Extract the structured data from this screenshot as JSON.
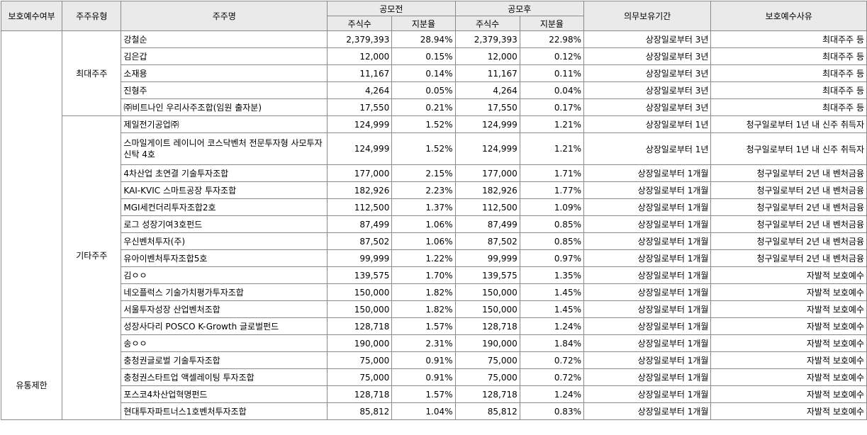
{
  "header": {
    "protect": "보호예수여부",
    "type": "주주유형",
    "name": "주주명",
    "pre": "공모전",
    "post": "공모후",
    "shares": "주식수",
    "ratio": "지분율",
    "period": "의무보유기간",
    "reason": "보호예수사유"
  },
  "protect_group": "유통제한",
  "groups": [
    "최대주주",
    "기타주주"
  ],
  "rows": [
    {
      "name": "강철순",
      "pre_shares": "2,379,393",
      "pre_ratio": "28.94%",
      "post_shares": "2,379,393",
      "post_ratio": "22.98%",
      "period": "상장일로부터 3년",
      "reason": "최대주주 등"
    },
    {
      "name": "김은갑",
      "pre_shares": "12,000",
      "pre_ratio": "0.15%",
      "post_shares": "12,000",
      "post_ratio": "0.12%",
      "period": "상장일로부터 3년",
      "reason": "최대주주 등"
    },
    {
      "name": "소재용",
      "pre_shares": "11,167",
      "pre_ratio": "0.14%",
      "post_shares": "11,167",
      "post_ratio": "0.11%",
      "period": "상장일로부터 3년",
      "reason": "최대주주 등"
    },
    {
      "name": "진형주",
      "pre_shares": "4,264",
      "pre_ratio": "0.05%",
      "post_shares": "4,264",
      "post_ratio": "0.04%",
      "period": "상장일로부터 3년",
      "reason": "최대주주 등"
    },
    {
      "name": "㈜비트나인 우리사주조합(임원 출자분)",
      "pre_shares": "17,550",
      "pre_ratio": "0.21%",
      "post_shares": "17,550",
      "post_ratio": "0.17%",
      "period": "상장일로부터 3년",
      "reason": "최대주주 등"
    },
    {
      "name": "제일전기공업㈜",
      "pre_shares": "124,999",
      "pre_ratio": "1.52%",
      "post_shares": "124,999",
      "post_ratio": "1.21%",
      "period": "상장일로부터 1년",
      "reason": "청구일로부터 1년 내 신주 취득자"
    },
    {
      "name": "스마일게이트 레이니어 코스닥벤처  전문투자형 사모투자신탁 4호",
      "pre_shares": "124,999",
      "pre_ratio": "1.52%",
      "post_shares": "124,999",
      "post_ratio": "1.21%",
      "period": "상장일로부터 1년",
      "reason": "청구일로부터 1년 내 신주 취득자"
    },
    {
      "name": "4차산업 초연결 기술투자조합",
      "pre_shares": "177,000",
      "pre_ratio": "2.15%",
      "post_shares": "177,000",
      "post_ratio": "1.71%",
      "period": "상장일로부터 1개월",
      "reason": "청구일로부터 2년 내 벤처금융"
    },
    {
      "name": "KAI-KVIC 스마트공장 투자조합",
      "pre_shares": "182,926",
      "pre_ratio": "2.23%",
      "post_shares": "182,926",
      "post_ratio": "1.77%",
      "period": "상장일로부터 1개월",
      "reason": "청구일로부터 2년 내 벤처금융"
    },
    {
      "name": "MGI세컨더리투자조합2호",
      "pre_shares": "112,500",
      "pre_ratio": "1.37%",
      "post_shares": "112,500",
      "post_ratio": "1.09%",
      "period": "상장일로부터 1개월",
      "reason": "청구일로부터 2년 내 벤처금융"
    },
    {
      "name": "로그 성장기여3호펀드",
      "pre_shares": "87,499",
      "pre_ratio": "1.06%",
      "post_shares": "87,499",
      "post_ratio": "0.85%",
      "period": "상장일로부터 1개월",
      "reason": "청구일로부터 2년 내 벤처금융"
    },
    {
      "name": "우신벤처투자(주)",
      "pre_shares": "87,502",
      "pre_ratio": "1.06%",
      "post_shares": "87,502",
      "post_ratio": "0.85%",
      "period": "상장일로부터 1개월",
      "reason": "청구일로부터 2년 내 벤처금융"
    },
    {
      "name": "유아이벤처투자조합5호",
      "pre_shares": "99,999",
      "pre_ratio": "1.22%",
      "post_shares": "99,999",
      "post_ratio": "0.97%",
      "period": "상장일로부터 1개월",
      "reason": "청구일로부터 2년 내 벤처금융"
    },
    {
      "name": "김ㅇㅇ",
      "pre_shares": "139,575",
      "pre_ratio": "1.70%",
      "post_shares": "139,575",
      "post_ratio": "1.35%",
      "period": "상장일로부터 1개월",
      "reason": "자발적 보호예수"
    },
    {
      "name": "네오플럭스 기술가치평가투자조합",
      "pre_shares": "150,000",
      "pre_ratio": "1.82%",
      "post_shares": "150,000",
      "post_ratio": "1.45%",
      "period": "상장일로부터 1개월",
      "reason": "자발적 보호예수"
    },
    {
      "name": "서울투자성장 산업벤처조합",
      "pre_shares": "150,000",
      "pre_ratio": "1.82%",
      "post_shares": "150,000",
      "post_ratio": "1.45%",
      "period": "상장일로부터 1개월",
      "reason": "자발적 보호예수"
    },
    {
      "name": "성장사다리 POSCO K-Growth 글로벌펀드",
      "pre_shares": "128,718",
      "pre_ratio": "1.57%",
      "post_shares": "128,718",
      "post_ratio": "1.24%",
      "period": "상장일로부터 1개월",
      "reason": "자발적 보호예수"
    },
    {
      "name": "송ㅇㅇ",
      "pre_shares": "190,000",
      "pre_ratio": "2.31%",
      "post_shares": "190,000",
      "post_ratio": "1.84%",
      "period": "상장일로부터 1개월",
      "reason": "자발적 보호예수"
    },
    {
      "name": "충청권글로벌 기술투자조합",
      "pre_shares": "75,000",
      "pre_ratio": "0.91%",
      "post_shares": "75,000",
      "post_ratio": "0.72%",
      "period": "상장일로부터 1개월",
      "reason": "자발적 보호예수"
    },
    {
      "name": "충청권스타트업 액셀레이팅 투자조합",
      "pre_shares": "75,000",
      "pre_ratio": "0.91%",
      "post_shares": "75,000",
      "post_ratio": "0.72%",
      "period": "상장일로부터 1개월",
      "reason": "자발적 보호예수"
    },
    {
      "name": "포스코4차산업혁명펀드",
      "pre_shares": "128,718",
      "pre_ratio": "1.57%",
      "post_shares": "128,718",
      "post_ratio": "1.24%",
      "period": "상장일로부터 1개월",
      "reason": "자발적 보호예수"
    },
    {
      "name": "현대투자파트너스1호벤처투자조합",
      "pre_shares": "85,812",
      "pre_ratio": "1.04%",
      "post_shares": "85,812",
      "post_ratio": "0.83%",
      "period": "상장일로부터 1개월",
      "reason": "자발적 보호예수"
    }
  ]
}
